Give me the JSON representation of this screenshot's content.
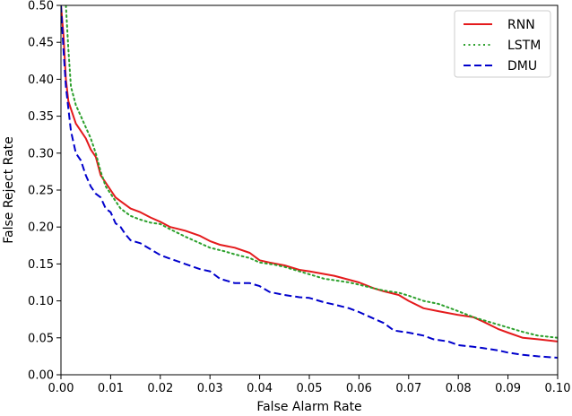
{
  "chart_data": {
    "type": "line",
    "title": "",
    "xlabel": "False Alarm Rate",
    "ylabel": "False Reject Rate",
    "xlim": [
      0.0,
      0.1
    ],
    "ylim": [
      0.0,
      0.5
    ],
    "xticks": [
      0.0,
      0.01,
      0.02,
      0.03,
      0.04,
      0.05,
      0.06,
      0.07,
      0.08,
      0.09,
      0.1
    ],
    "xtick_labels": [
      "0.00",
      "0.01",
      "0.02",
      "0.03",
      "0.04",
      "0.05",
      "0.06",
      "0.07",
      "0.08",
      "0.09",
      "0.10"
    ],
    "yticks": [
      0.0,
      0.05,
      0.1,
      0.15,
      0.2,
      0.25,
      0.3,
      0.35,
      0.4,
      0.45,
      0.5
    ],
    "ytick_labels": [
      "0.00",
      "0.05",
      "0.10",
      "0.15",
      "0.20",
      "0.25",
      "0.30",
      "0.35",
      "0.40",
      "0.45",
      "0.50"
    ],
    "grid": false,
    "legend_position": "top-right",
    "series": [
      {
        "name": "RNN",
        "color": "#e41a1c",
        "style": "solid",
        "points": [
          [
            0.0,
            0.5
          ],
          [
            0.0005,
            0.46
          ],
          [
            0.001,
            0.4
          ],
          [
            0.0015,
            0.37
          ],
          [
            0.002,
            0.36
          ],
          [
            0.003,
            0.34
          ],
          [
            0.004,
            0.33
          ],
          [
            0.005,
            0.32
          ],
          [
            0.006,
            0.305
          ],
          [
            0.007,
            0.295
          ],
          [
            0.008,
            0.27
          ],
          [
            0.009,
            0.26
          ],
          [
            0.01,
            0.25
          ],
          [
            0.011,
            0.24
          ],
          [
            0.012,
            0.235
          ],
          [
            0.014,
            0.225
          ],
          [
            0.016,
            0.22
          ],
          [
            0.018,
            0.213
          ],
          [
            0.02,
            0.207
          ],
          [
            0.022,
            0.2
          ],
          [
            0.025,
            0.195
          ],
          [
            0.028,
            0.188
          ],
          [
            0.03,
            0.181
          ],
          [
            0.032,
            0.176
          ],
          [
            0.035,
            0.172
          ],
          [
            0.038,
            0.165
          ],
          [
            0.04,
            0.155
          ],
          [
            0.042,
            0.152
          ],
          [
            0.045,
            0.148
          ],
          [
            0.048,
            0.142
          ],
          [
            0.05,
            0.14
          ],
          [
            0.055,
            0.134
          ],
          [
            0.06,
            0.125
          ],
          [
            0.063,
            0.117
          ],
          [
            0.065,
            0.113
          ],
          [
            0.068,
            0.108
          ],
          [
            0.07,
            0.1
          ],
          [
            0.073,
            0.09
          ],
          [
            0.076,
            0.086
          ],
          [
            0.08,
            0.081
          ],
          [
            0.083,
            0.078
          ],
          [
            0.085,
            0.072
          ],
          [
            0.088,
            0.062
          ],
          [
            0.09,
            0.057
          ],
          [
            0.093,
            0.05
          ],
          [
            0.096,
            0.048
          ],
          [
            0.1,
            0.045
          ]
        ]
      },
      {
        "name": "LSTM",
        "color": "#2ca02c",
        "style": "dotted",
        "points": [
          [
            0.001,
            0.5
          ],
          [
            0.0015,
            0.44
          ],
          [
            0.002,
            0.39
          ],
          [
            0.003,
            0.365
          ],
          [
            0.004,
            0.35
          ],
          [
            0.005,
            0.335
          ],
          [
            0.006,
            0.32
          ],
          [
            0.007,
            0.3
          ],
          [
            0.008,
            0.275
          ],
          [
            0.009,
            0.255
          ],
          [
            0.01,
            0.245
          ],
          [
            0.012,
            0.225
          ],
          [
            0.014,
            0.215
          ],
          [
            0.016,
            0.21
          ],
          [
            0.018,
            0.206
          ],
          [
            0.02,
            0.204
          ],
          [
            0.022,
            0.197
          ],
          [
            0.025,
            0.187
          ],
          [
            0.028,
            0.178
          ],
          [
            0.03,
            0.172
          ],
          [
            0.033,
            0.167
          ],
          [
            0.035,
            0.163
          ],
          [
            0.038,
            0.158
          ],
          [
            0.04,
            0.152
          ],
          [
            0.043,
            0.149
          ],
          [
            0.045,
            0.146
          ],
          [
            0.048,
            0.14
          ],
          [
            0.05,
            0.136
          ],
          [
            0.053,
            0.13
          ],
          [
            0.055,
            0.128
          ],
          [
            0.058,
            0.125
          ],
          [
            0.06,
            0.122
          ],
          [
            0.063,
            0.117
          ],
          [
            0.065,
            0.114
          ],
          [
            0.068,
            0.111
          ],
          [
            0.07,
            0.107
          ],
          [
            0.073,
            0.1
          ],
          [
            0.076,
            0.096
          ],
          [
            0.08,
            0.086
          ],
          [
            0.083,
            0.078
          ],
          [
            0.086,
            0.072
          ],
          [
            0.09,
            0.064
          ],
          [
            0.093,
            0.058
          ],
          [
            0.096,
            0.053
          ],
          [
            0.1,
            0.05
          ]
        ]
      },
      {
        "name": "DMU",
        "color": "#0000cc",
        "style": "dashed",
        "points": [
          [
            0.0,
            0.5
          ],
          [
            0.0005,
            0.44
          ],
          [
            0.001,
            0.39
          ],
          [
            0.0015,
            0.36
          ],
          [
            0.002,
            0.33
          ],
          [
            0.003,
            0.3
          ],
          [
            0.004,
            0.29
          ],
          [
            0.005,
            0.27
          ],
          [
            0.006,
            0.255
          ],
          [
            0.007,
            0.245
          ],
          [
            0.008,
            0.24
          ],
          [
            0.009,
            0.225
          ],
          [
            0.01,
            0.22
          ],
          [
            0.011,
            0.205
          ],
          [
            0.012,
            0.2
          ],
          [
            0.013,
            0.19
          ],
          [
            0.014,
            0.182
          ],
          [
            0.016,
            0.178
          ],
          [
            0.018,
            0.17
          ],
          [
            0.02,
            0.162
          ],
          [
            0.022,
            0.157
          ],
          [
            0.025,
            0.15
          ],
          [
            0.028,
            0.143
          ],
          [
            0.03,
            0.14
          ],
          [
            0.032,
            0.13
          ],
          [
            0.035,
            0.124
          ],
          [
            0.038,
            0.124
          ],
          [
            0.04,
            0.12
          ],
          [
            0.042,
            0.112
          ],
          [
            0.045,
            0.108
          ],
          [
            0.048,
            0.105
          ],
          [
            0.05,
            0.104
          ],
          [
            0.053,
            0.098
          ],
          [
            0.055,
            0.095
          ],
          [
            0.058,
            0.09
          ],
          [
            0.06,
            0.085
          ],
          [
            0.063,
            0.076
          ],
          [
            0.065,
            0.07
          ],
          [
            0.067,
            0.06
          ],
          [
            0.07,
            0.057
          ],
          [
            0.073,
            0.053
          ],
          [
            0.075,
            0.048
          ],
          [
            0.078,
            0.045
          ],
          [
            0.08,
            0.04
          ],
          [
            0.083,
            0.038
          ],
          [
            0.085,
            0.036
          ],
          [
            0.088,
            0.033
          ],
          [
            0.09,
            0.03
          ],
          [
            0.093,
            0.027
          ],
          [
            0.096,
            0.025
          ],
          [
            0.1,
            0.023
          ]
        ]
      }
    ]
  }
}
